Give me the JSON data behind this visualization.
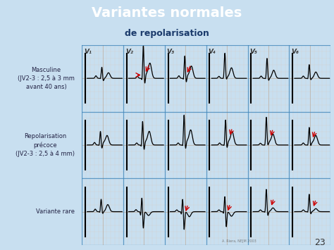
{
  "title_line1": "Variantes normales",
  "title_line2": "de repolarisation",
  "title_bg_color": "#5ab3e5",
  "title_text_color": "#ffffff",
  "title_line2_color": "#1a3a6b",
  "slide_bg_color": "#c8dff0",
  "panel_bg_color": "#ede8df",
  "grid_major_color": "#b8a898",
  "grid_minor_color": "#d8cfc4",
  "panel_border_color": "#4488bb",
  "row_label_color": "#222244",
  "col_label_color": "#333333",
  "ecg_color": "#000000",
  "arrow_color": "#cc0000",
  "watermark_color": "#666666",
  "page_number": "23",
  "watermark": "A. Riera, NEJM 2003",
  "row_labels": [
    "Masculine\n(JV2-3 : 2,5 à 3 mm\navant 40 ans)",
    "Repolarisation\nprécoce\n(JV2-3 : 2,5 à 4 mm)",
    "Variante rare"
  ],
  "col_labels": [
    "V₁",
    "V₂",
    "V₃",
    "V₄",
    "V₅",
    "V₆"
  ]
}
